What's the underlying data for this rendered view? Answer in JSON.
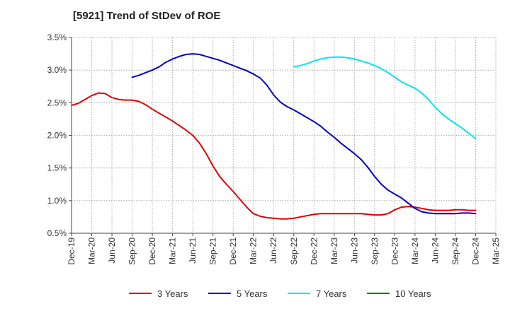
{
  "chart_data": {
    "type": "line",
    "title": "[5921]  Trend of StDev of ROE",
    "xlabel": "",
    "ylabel": "",
    "ylim": [
      0.5,
      3.5
    ],
    "y_ticks": [
      "0.5%",
      "1.0%",
      "1.5%",
      "2.0%",
      "2.5%",
      "3.0%",
      "3.5%"
    ],
    "x_ticks": [
      "Dec-19",
      "Mar-20",
      "Jun-20",
      "Sep-20",
      "Dec-20",
      "Mar-21",
      "Jun-21",
      "Sep-21",
      "Dec-21",
      "Mar-22",
      "Jun-22",
      "Sep-22",
      "Dec-22",
      "Mar-23",
      "Jun-23",
      "Sep-23",
      "Dec-23",
      "Mar-24",
      "Jun-24",
      "Sep-24",
      "Dec-24",
      "Mar-25"
    ],
    "grid": true,
    "legend_position": "bottom",
    "series": [
      {
        "name": "3 Years",
        "color": "#e00000",
        "points": [
          [
            "Dec-19",
            2.46
          ],
          [
            "Jan-20",
            2.49
          ],
          [
            "Feb-20",
            2.55
          ],
          [
            "Mar-20",
            2.61
          ],
          [
            "Apr-20",
            2.65
          ],
          [
            "May-20",
            2.64
          ],
          [
            "Jun-20",
            2.58
          ],
          [
            "Jul-20",
            2.55
          ],
          [
            "Aug-20",
            2.54
          ],
          [
            "Sep-20",
            2.54
          ],
          [
            "Oct-20",
            2.52
          ],
          [
            "Nov-20",
            2.47
          ],
          [
            "Dec-20",
            2.4
          ],
          [
            "Jan-21",
            2.34
          ],
          [
            "Feb-21",
            2.28
          ],
          [
            "Mar-21",
            2.22
          ],
          [
            "Apr-21",
            2.15
          ],
          [
            "May-21",
            2.08
          ],
          [
            "Jun-21",
            2.0
          ],
          [
            "Jul-21",
            1.88
          ],
          [
            "Aug-21",
            1.72
          ],
          [
            "Sep-21",
            1.53
          ],
          [
            "Oct-21",
            1.37
          ],
          [
            "Nov-21",
            1.25
          ],
          [
            "Dec-21",
            1.14
          ],
          [
            "Jan-22",
            1.02
          ],
          [
            "Feb-22",
            0.9
          ],
          [
            "Mar-22",
            0.8
          ],
          [
            "Apr-22",
            0.76
          ],
          [
            "May-22",
            0.74
          ],
          [
            "Jun-22",
            0.73
          ],
          [
            "Jul-22",
            0.72
          ],
          [
            "Aug-22",
            0.72
          ],
          [
            "Sep-22",
            0.73
          ],
          [
            "Oct-22",
            0.75
          ],
          [
            "Nov-22",
            0.77
          ],
          [
            "Dec-22",
            0.79
          ],
          [
            "Jan-23",
            0.8
          ],
          [
            "Feb-23",
            0.8
          ],
          [
            "Mar-23",
            0.8
          ],
          [
            "Apr-23",
            0.8
          ],
          [
            "May-23",
            0.8
          ],
          [
            "Jun-23",
            0.8
          ],
          [
            "Jul-23",
            0.8
          ],
          [
            "Aug-23",
            0.79
          ],
          [
            "Sep-23",
            0.78
          ],
          [
            "Oct-23",
            0.78
          ],
          [
            "Nov-23",
            0.8
          ],
          [
            "Dec-23",
            0.86
          ],
          [
            "Jan-24",
            0.9
          ],
          [
            "Feb-24",
            0.91
          ],
          [
            "Mar-24",
            0.9
          ],
          [
            "Apr-24",
            0.88
          ],
          [
            "May-24",
            0.86
          ],
          [
            "Jun-24",
            0.85
          ],
          [
            "Jul-24",
            0.85
          ],
          [
            "Aug-24",
            0.85
          ],
          [
            "Sep-24",
            0.86
          ],
          [
            "Oct-24",
            0.86
          ],
          [
            "Nov-24",
            0.85
          ],
          [
            "Dec-24",
            0.85
          ]
        ]
      },
      {
        "name": "5 Years",
        "color": "#0000cc",
        "points": [
          [
            "Sep-20",
            2.89
          ],
          [
            "Oct-20",
            2.92
          ],
          [
            "Nov-20",
            2.96
          ],
          [
            "Dec-20",
            3.0
          ],
          [
            "Jan-21",
            3.05
          ],
          [
            "Feb-21",
            3.12
          ],
          [
            "Mar-21",
            3.17
          ],
          [
            "Apr-21",
            3.21
          ],
          [
            "May-21",
            3.24
          ],
          [
            "Jun-21",
            3.25
          ],
          [
            "Jul-21",
            3.24
          ],
          [
            "Aug-21",
            3.21
          ],
          [
            "Sep-21",
            3.18
          ],
          [
            "Oct-21",
            3.15
          ],
          [
            "Nov-21",
            3.11
          ],
          [
            "Dec-21",
            3.07
          ],
          [
            "Jan-22",
            3.03
          ],
          [
            "Feb-22",
            2.99
          ],
          [
            "Mar-22",
            2.94
          ],
          [
            "Apr-22",
            2.88
          ],
          [
            "May-22",
            2.77
          ],
          [
            "Jun-22",
            2.62
          ],
          [
            "Jul-22",
            2.51
          ],
          [
            "Aug-22",
            2.44
          ],
          [
            "Sep-22",
            2.39
          ],
          [
            "Oct-22",
            2.33
          ],
          [
            "Nov-22",
            2.27
          ],
          [
            "Dec-22",
            2.21
          ],
          [
            "Jan-23",
            2.14
          ],
          [
            "Feb-23",
            2.05
          ],
          [
            "Mar-23",
            1.97
          ],
          [
            "Apr-23",
            1.88
          ],
          [
            "May-23",
            1.8
          ],
          [
            "Jun-23",
            1.72
          ],
          [
            "Jul-23",
            1.63
          ],
          [
            "Aug-23",
            1.51
          ],
          [
            "Sep-23",
            1.37
          ],
          [
            "Oct-23",
            1.25
          ],
          [
            "Nov-23",
            1.16
          ],
          [
            "Dec-23",
            1.1
          ],
          [
            "Jan-24",
            1.04
          ],
          [
            "Feb-24",
            0.96
          ],
          [
            "Mar-24",
            0.88
          ],
          [
            "Apr-24",
            0.83
          ],
          [
            "May-24",
            0.81
          ],
          [
            "Jun-24",
            0.8
          ],
          [
            "Jul-24",
            0.8
          ],
          [
            "Aug-24",
            0.8
          ],
          [
            "Sep-24",
            0.8
          ],
          [
            "Oct-24",
            0.81
          ],
          [
            "Nov-24",
            0.81
          ],
          [
            "Dec-24",
            0.8
          ]
        ]
      },
      {
        "name": "7 Years",
        "color": "#00e5ee",
        "points": [
          [
            "Sep-22",
            3.05
          ],
          [
            "Oct-22",
            3.07
          ],
          [
            "Nov-22",
            3.1
          ],
          [
            "Dec-22",
            3.14
          ],
          [
            "Jan-23",
            3.17
          ],
          [
            "Feb-23",
            3.19
          ],
          [
            "Mar-23",
            3.2
          ],
          [
            "Apr-23",
            3.2
          ],
          [
            "May-23",
            3.19
          ],
          [
            "Jun-23",
            3.17
          ],
          [
            "Jul-23",
            3.14
          ],
          [
            "Aug-23",
            3.11
          ],
          [
            "Sep-23",
            3.07
          ],
          [
            "Oct-23",
            3.02
          ],
          [
            "Nov-23",
            2.96
          ],
          [
            "Dec-23",
            2.89
          ],
          [
            "Jan-24",
            2.82
          ],
          [
            "Feb-24",
            2.77
          ],
          [
            "Mar-24",
            2.72
          ],
          [
            "Apr-24",
            2.65
          ],
          [
            "May-24",
            2.55
          ],
          [
            "Jun-24",
            2.43
          ],
          [
            "Jul-24",
            2.33
          ],
          [
            "Aug-24",
            2.25
          ],
          [
            "Sep-24",
            2.18
          ],
          [
            "Oct-24",
            2.11
          ],
          [
            "Nov-24",
            2.03
          ],
          [
            "Dec-24",
            1.95
          ]
        ]
      },
      {
        "name": "10 Years",
        "color": "#008000",
        "points": []
      }
    ]
  }
}
